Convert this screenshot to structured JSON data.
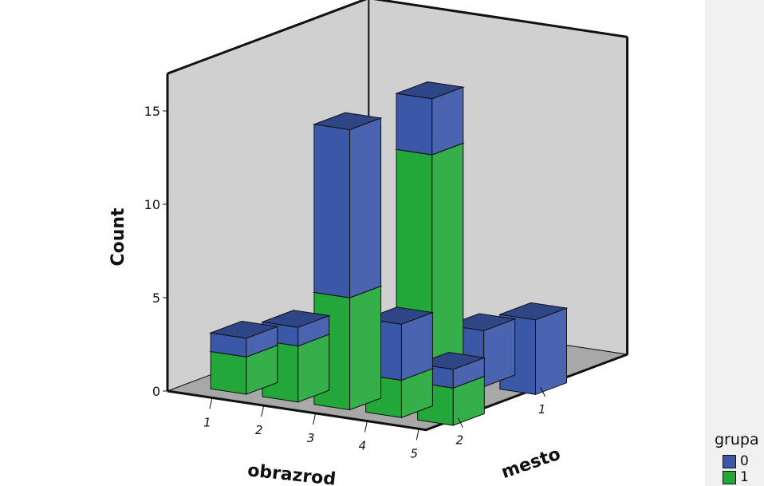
{
  "colors": {
    "group_0": "#3a57a8",
    "group_1": "#22a839",
    "walls": "#d0d0d0",
    "plot_bg": "#ffffff"
  },
  "chart_data": {
    "type": "bar",
    "variant": "3d-stacked",
    "title": "",
    "xlabel": "obrazrod",
    "zlabel": "mesto",
    "ylabel": "Count",
    "categories": [
      "1",
      "2",
      "3",
      "4",
      "5"
    ],
    "depth_categories": [
      "2",
      "1"
    ],
    "y_ticks": [
      "0",
      "5",
      "10",
      "15"
    ],
    "ylim": [
      0,
      17
    ],
    "legend_title": "grupa",
    "legend_position": "bottom-right",
    "grid": false,
    "series": [
      {
        "name": "0",
        "color_key": "group_0",
        "values": {
          "1": {
            "2": 1,
            "1": 1
          },
          "2": {
            "2": 1,
            "1": 1
          },
          "3": {
            "2": 9,
            "1": 3
          },
          "4": {
            "2": 3,
            "1": 3
          },
          "5": {
            "2": 1,
            "1": 4
          }
        }
      },
      {
        "name": "1",
        "color_key": "group_1",
        "values": {
          "1": {
            "2": 2,
            "1": 0
          },
          "2": {
            "2": 3,
            "1": 0
          },
          "3": {
            "2": 6,
            "1": 12
          },
          "4": {
            "2": 2,
            "1": 0
          },
          "5": {
            "2": 2,
            "1": 0
          }
        }
      }
    ]
  }
}
